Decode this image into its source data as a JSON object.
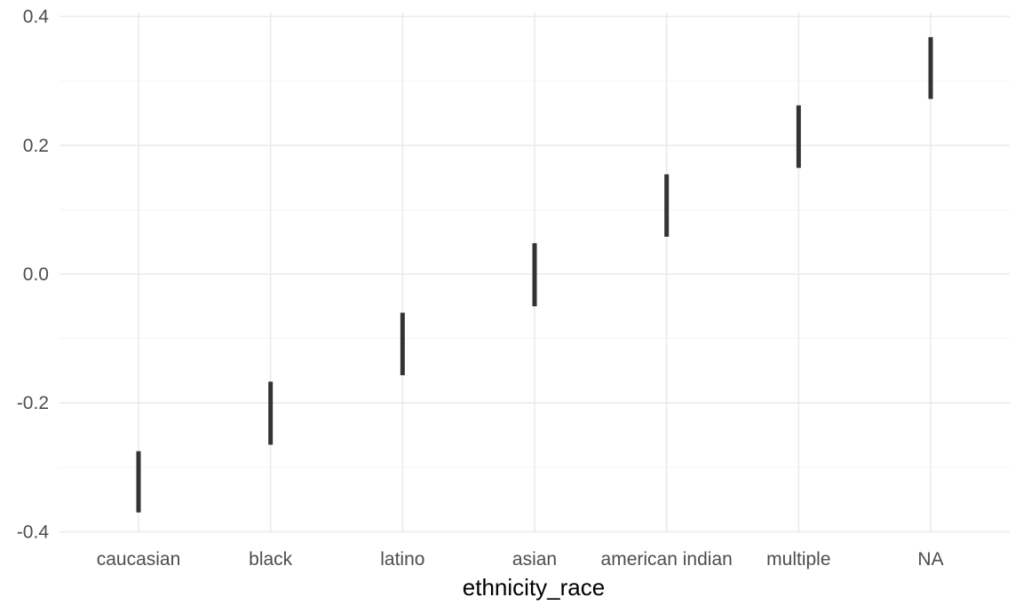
{
  "chart_data": {
    "type": "errorbar",
    "categories": [
      "caucasian",
      "black",
      "latino",
      "asian",
      "american indian",
      "multiple",
      "NA"
    ],
    "series": [
      {
        "lower": [
          -0.37,
          -0.265,
          -0.157,
          -0.05,
          0.058,
          0.165,
          0.272
        ],
        "upper": [
          -0.275,
          -0.167,
          -0.06,
          0.048,
          0.155,
          0.262,
          0.368
        ]
      }
    ],
    "y_ticks": [
      "0.4",
      "0.2",
      "0.0",
      "-0.2",
      "-0.4"
    ],
    "y_tick_values": [
      0.4,
      0.2,
      0.0,
      -0.2,
      -0.4
    ],
    "ylim": [
      -0.4,
      0.4
    ],
    "xlabel": "ethnicity_race",
    "ylabel": "",
    "grid": true,
    "legend": "none"
  }
}
